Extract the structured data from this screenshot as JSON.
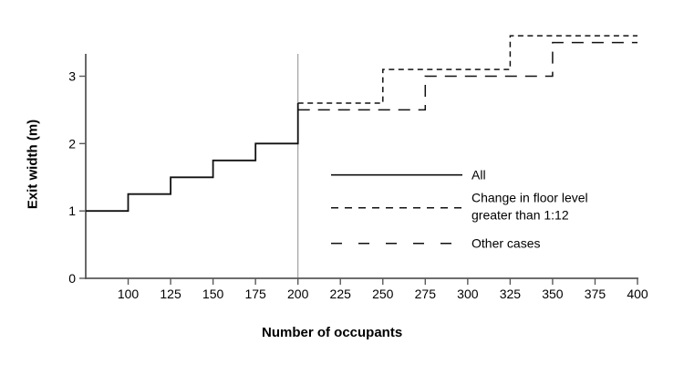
{
  "figure": {
    "x_axis_title": "Number of occupants",
    "y_axis_title": "Exit width (m)"
  },
  "chart_data": {
    "type": "line",
    "line_shape": "step",
    "title": "",
    "xlabel": "Number of occupants",
    "ylabel": "Exit width (m)",
    "xlim": [
      75,
      400
    ],
    "ylim": [
      0,
      3.33
    ],
    "x_ticks": [
      100,
      125,
      150,
      175,
      200,
      225,
      250,
      275,
      300,
      325,
      350,
      375,
      400
    ],
    "y_ticks": [
      0,
      1,
      2,
      3
    ],
    "grid": false,
    "legend_position": "inside lower right",
    "reference_line": {
      "axis": "x",
      "value": 200
    },
    "series": [
      {
        "name": "All",
        "line": "solid",
        "points": [
          [
            75,
            1.0
          ],
          [
            100,
            1.0
          ],
          [
            100,
            1.25
          ],
          [
            125,
            1.25
          ],
          [
            125,
            1.5
          ],
          [
            150,
            1.5
          ],
          [
            150,
            1.75
          ],
          [
            175,
            1.75
          ],
          [
            175,
            2.0
          ],
          [
            200,
            2.0
          ],
          [
            200,
            2.6
          ]
        ]
      },
      {
        "name": "Change in floor level greater than 1:12",
        "line": "short-dash",
        "points": [
          [
            200,
            2.6
          ],
          [
            250,
            2.6
          ],
          [
            250,
            3.1
          ],
          [
            325,
            3.1
          ],
          [
            325,
            3.6
          ],
          [
            400,
            3.6
          ]
        ]
      },
      {
        "name": "Other cases",
        "line": "long-dash",
        "points": [
          [
            200,
            2.5
          ],
          [
            275,
            2.5
          ],
          [
            275,
            3.0
          ],
          [
            350,
            3.0
          ],
          [
            350,
            3.5
          ],
          [
            400,
            3.5
          ]
        ]
      }
    ]
  },
  "legend": {
    "items": [
      {
        "dash": "solid",
        "label_lines": [
          "All"
        ]
      },
      {
        "dash": "short-dash",
        "label_lines": [
          "Change in floor level",
          "greater than 1:12"
        ]
      },
      {
        "dash": "long-dash",
        "label_lines": [
          "Other cases"
        ]
      }
    ]
  },
  "colors": {
    "series_line": "#111111",
    "axis": "#595959",
    "reference_line": "#999999",
    "text": "#000000",
    "background": "#ffffff"
  }
}
